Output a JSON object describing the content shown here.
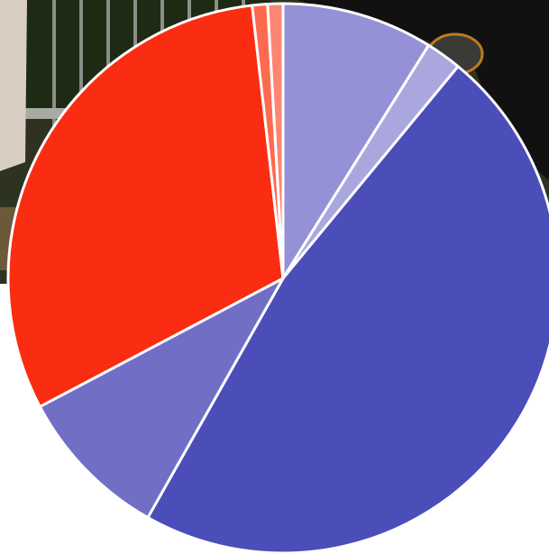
{
  "background": {
    "photo_icon": "street-photo-backdrop",
    "photo_colors": [
      "#1f2a14",
      "#8a8f86",
      "#6b5a3a",
      "#d8cfc2",
      "#3a3a36",
      "#111111"
    ]
  },
  "chart_data": {
    "type": "pie",
    "start_angle_deg": 0,
    "direction": "clockwise",
    "legend": "none",
    "data_labels": "none",
    "slices": [
      {
        "value": 8.9,
        "color": "#9491d6"
      },
      {
        "value": 2.1,
        "color": "#aaa7df"
      },
      {
        "value": 47.3,
        "color": "#4b4db9"
      },
      {
        "value": 9.1,
        "color": "#716fc5"
      },
      {
        "value": 31.0,
        "color": "#fa2c12"
      },
      {
        "value": 0.9,
        "color": "#fd6a4f"
      },
      {
        "value": 0.9,
        "color": "#fd8672"
      }
    ]
  }
}
